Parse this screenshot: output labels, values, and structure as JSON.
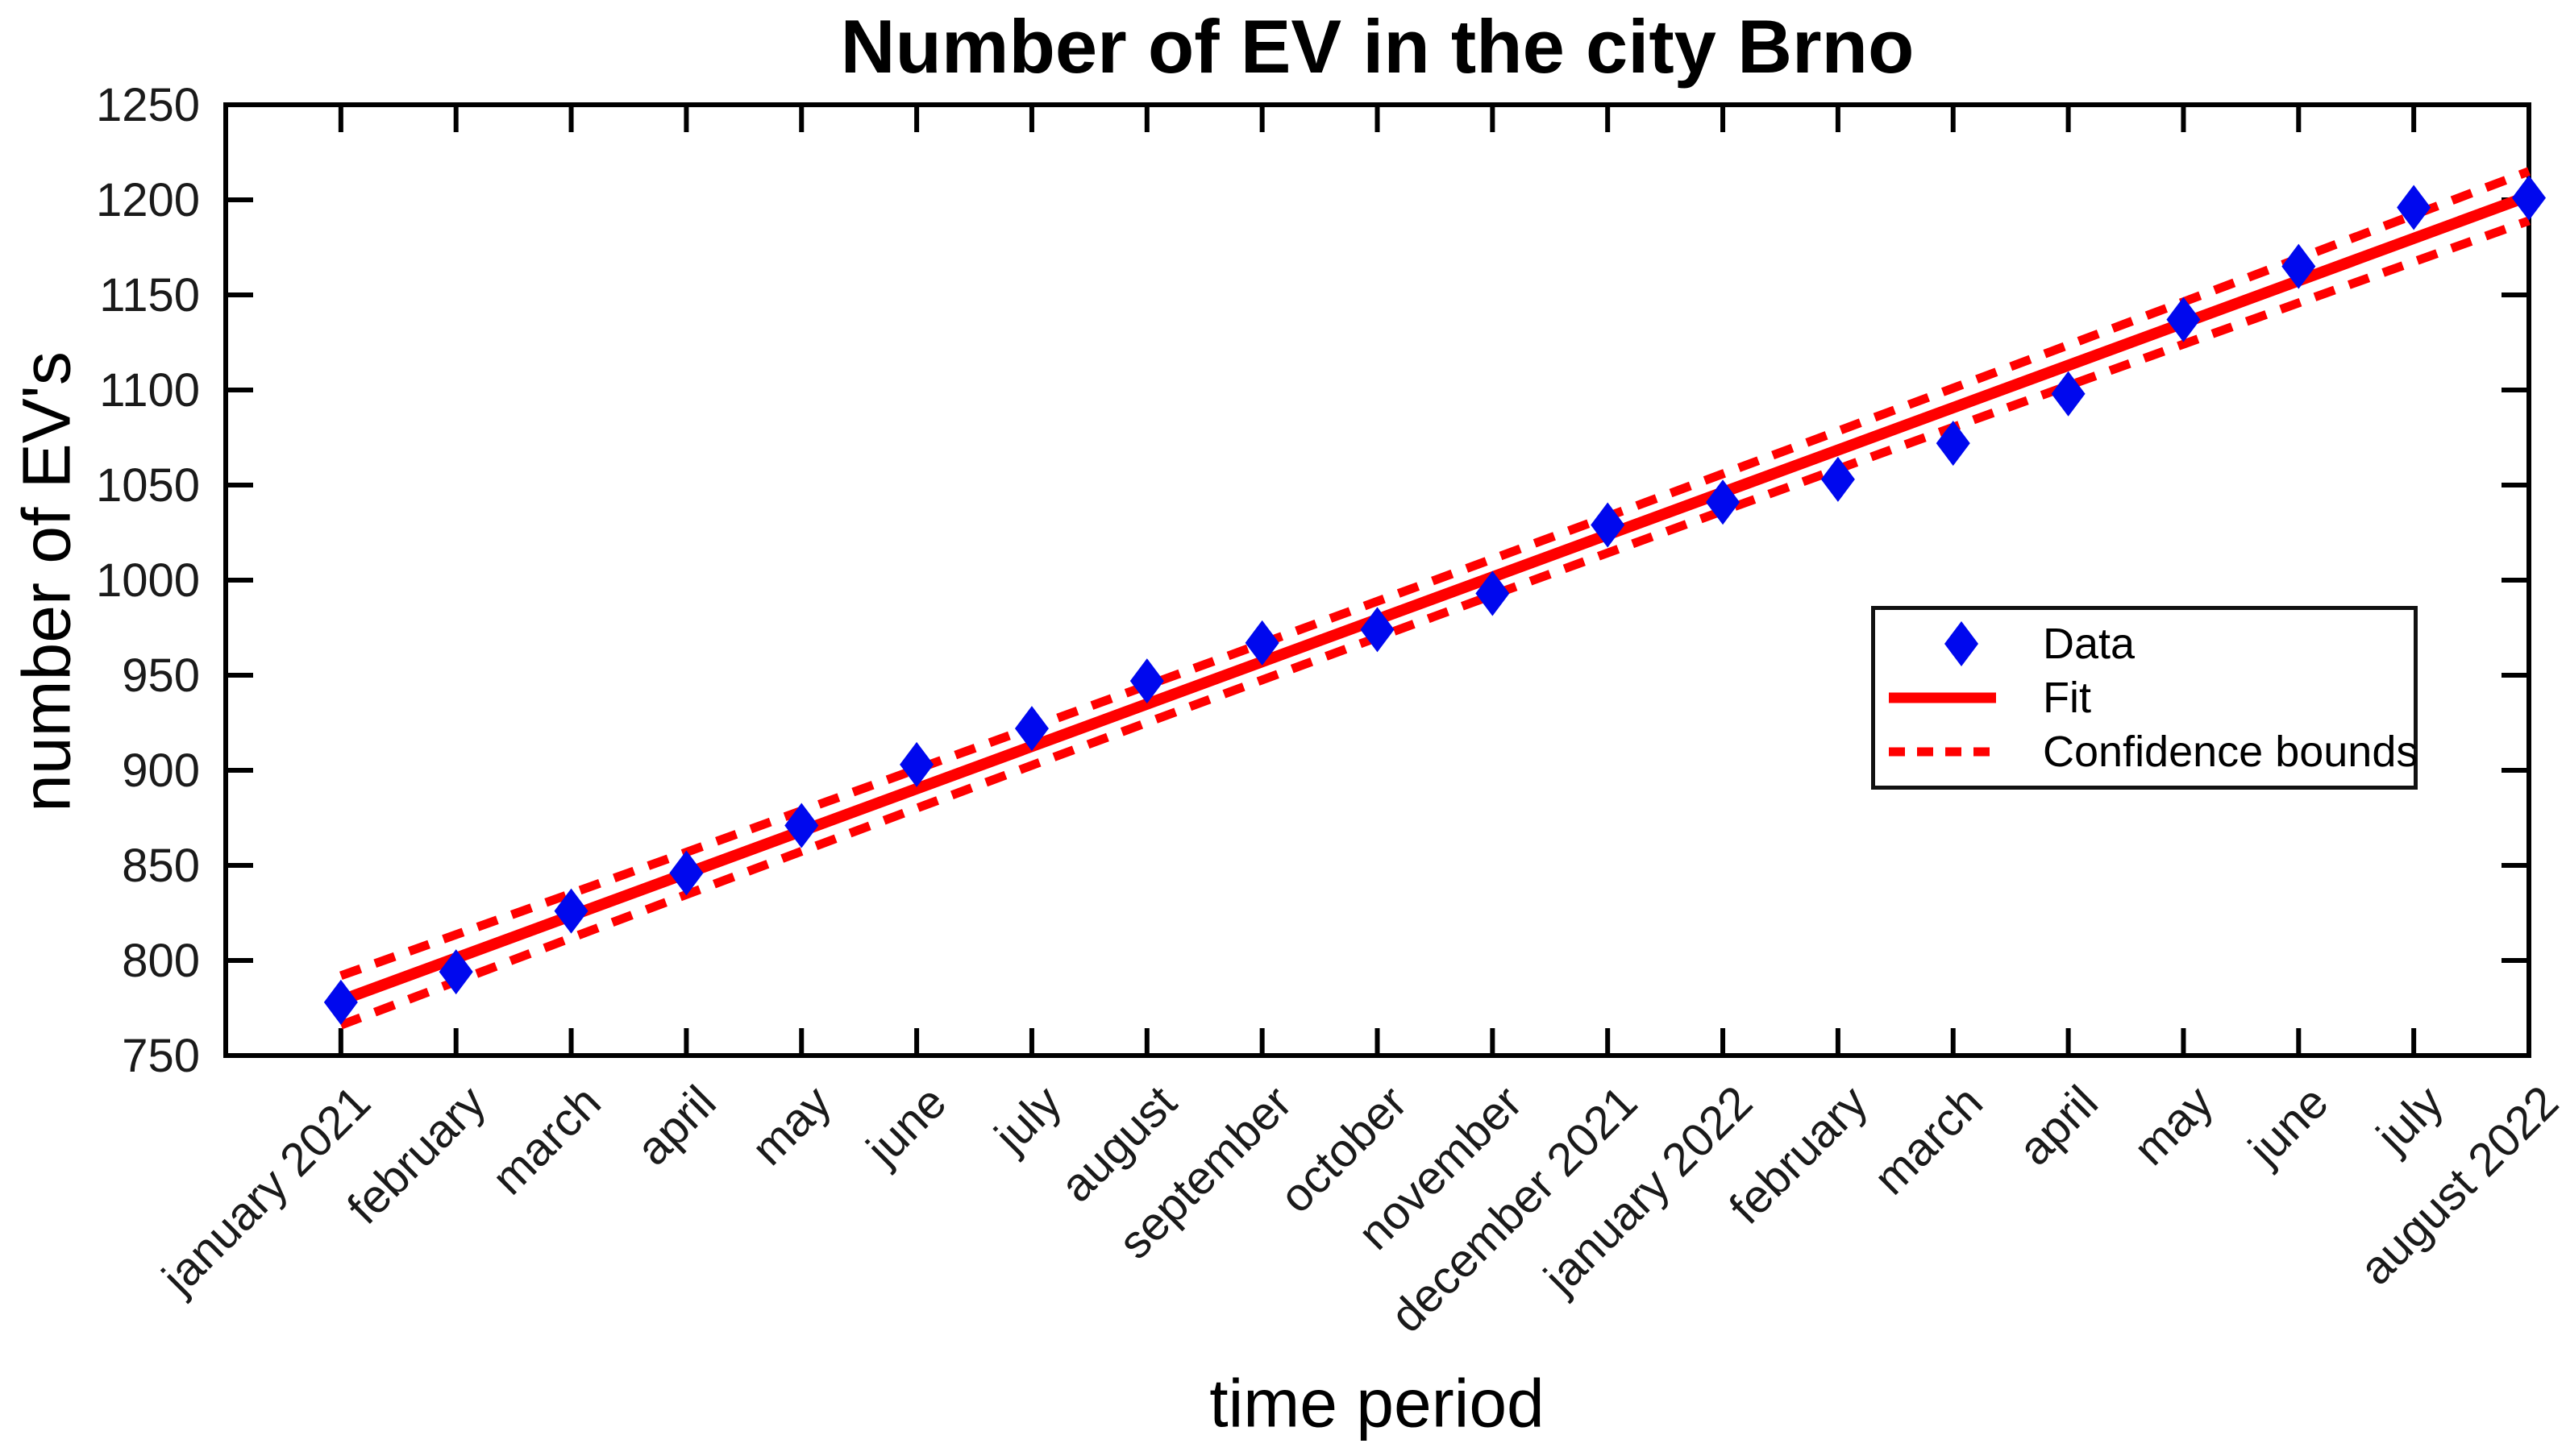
{
  "figure": {
    "title": "Number of EV in the city Brno",
    "xlabel": "time period",
    "ylabel": "number of EV's"
  },
  "colors": {
    "data_marker": "#0008ee",
    "fit_line": "#ff0000",
    "confidence_bounds": "#ff0000",
    "axis": "#000000",
    "tick_label": "#1a1a1a",
    "background": "#ffffff"
  },
  "legend": {
    "items": [
      {
        "label": "Data",
        "marker": "blue-diamond"
      },
      {
        "label": "Fit",
        "marker": "red-solid-line"
      },
      {
        "label": "Confidence bounds",
        "marker": "red-dotted-line"
      }
    ]
  },
  "chart_data": {
    "type": "scatter",
    "title": "Number of EV in the city Brno",
    "xlabel": "time period",
    "ylabel": "number of EV's",
    "categories": [
      "january 2021",
      "february",
      "march",
      "april",
      "may",
      "june",
      "july",
      "august",
      "september",
      "october",
      "november",
      "december 2021",
      "january 2022",
      "february",
      "march",
      "april",
      "may",
      "june",
      "july",
      "august 2022"
    ],
    "series": [
      {
        "name": "Data",
        "type": "scatter",
        "marker": "diamond",
        "values": [
          778,
          794,
          826,
          846,
          871,
          903,
          922,
          947,
          967,
          974,
          993,
          1029,
          1041,
          1053,
          1072,
          1098,
          1137,
          1165,
          1196,
          1201
        ]
      },
      {
        "name": "Fit",
        "type": "line",
        "fit_start": 779,
        "fit_end": 1202
      },
      {
        "name": "Confidence bounds",
        "type": "dotted-line-pair",
        "half_width_mid": 9.5,
        "half_width_end": 13
      }
    ],
    "ylim": [
      750,
      1250
    ],
    "yticks": [
      750,
      800,
      850,
      900,
      950,
      1000,
      1050,
      1100,
      1150,
      1200,
      1250
    ],
    "x_month_slots": 20,
    "xlim_slots": [
      0,
      20
    ],
    "grid": false,
    "box": true,
    "tick_direction": "in",
    "legend_position": "middle-right",
    "x_tick_rotation_deg": 45
  }
}
